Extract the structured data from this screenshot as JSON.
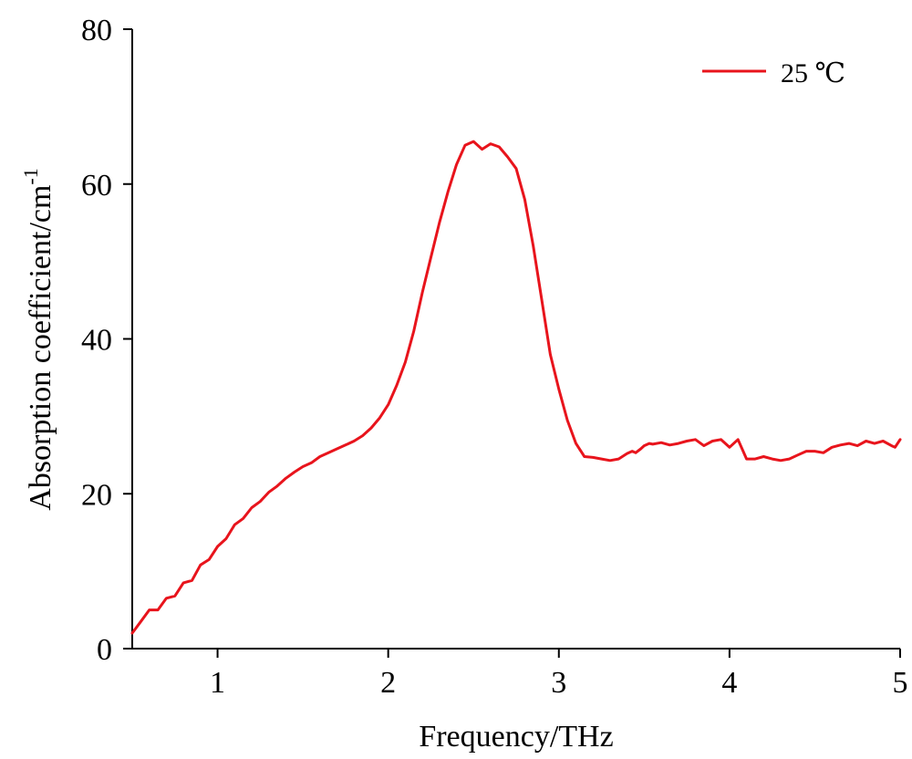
{
  "chart_data": {
    "type": "line",
    "xlabel": "Frequency/THz",
    "ylabel": "Absorption coefficient/cm",
    "ylabel_superscript": "-1",
    "xlim": [
      0.5,
      5
    ],
    "ylim": [
      0,
      80
    ],
    "xticks": [
      "1",
      "2",
      "3",
      "4",
      "5"
    ],
    "yticks": [
      "0",
      "20",
      "40",
      "60",
      "80"
    ],
    "grid": false,
    "legend_position": "top-right",
    "series": [
      {
        "name": "25 ℃",
        "color": "#e8141c",
        "x": [
          0.5,
          0.55,
          0.6,
          0.65,
          0.7,
          0.75,
          0.8,
          0.85,
          0.9,
          0.95,
          1.0,
          1.05,
          1.1,
          1.15,
          1.2,
          1.25,
          1.3,
          1.35,
          1.4,
          1.45,
          1.5,
          1.55,
          1.6,
          1.65,
          1.7,
          1.75,
          1.8,
          1.85,
          1.9,
          1.95,
          2.0,
          2.05,
          2.1,
          2.15,
          2.2,
          2.25,
          2.3,
          2.35,
          2.4,
          2.45,
          2.5,
          2.55,
          2.6,
          2.65,
          2.7,
          2.75,
          2.8,
          2.85,
          2.9,
          2.95,
          3.0,
          3.05,
          3.1,
          3.15,
          3.2,
          3.25,
          3.3,
          3.35,
          3.4,
          3.43,
          3.45,
          3.48,
          3.5,
          3.53,
          3.55,
          3.6,
          3.65,
          3.7,
          3.75,
          3.8,
          3.85,
          3.9,
          3.95,
          4.0,
          4.05,
          4.1,
          4.15,
          4.2,
          4.25,
          4.3,
          4.35,
          4.4,
          4.45,
          4.5,
          4.55,
          4.6,
          4.65,
          4.7,
          4.75,
          4.8,
          4.85,
          4.9,
          4.95,
          4.97,
          5.0
        ],
        "y": [
          2.0,
          3.5,
          5.0,
          5.0,
          6.5,
          6.8,
          8.5,
          8.8,
          10.8,
          11.5,
          13.2,
          14.2,
          16.0,
          16.8,
          18.2,
          19.0,
          20.2,
          21.0,
          22.0,
          22.8,
          23.5,
          24.0,
          24.8,
          25.3,
          25.8,
          26.3,
          26.8,
          27.5,
          28.5,
          29.8,
          31.5,
          34.0,
          37.0,
          41.0,
          46.0,
          50.5,
          55.0,
          59.0,
          62.5,
          65.0,
          65.5,
          64.5,
          65.2,
          64.8,
          63.5,
          62.0,
          58.0,
          52.0,
          45.0,
          38.0,
          33.5,
          29.5,
          26.5,
          24.8,
          24.7,
          24.5,
          24.3,
          24.5,
          25.2,
          25.5,
          25.3,
          25.8,
          26.2,
          26.5,
          26.4,
          26.6,
          26.3,
          26.5,
          26.8,
          27.0,
          26.2,
          26.8,
          27.0,
          26.0,
          27.0,
          24.5,
          24.5,
          24.8,
          24.5,
          24.3,
          24.5,
          25.0,
          25.5,
          25.5,
          25.3,
          26.0,
          26.3,
          26.5,
          26.2,
          26.8,
          26.5,
          26.8,
          26.2,
          26.0,
          27.0
        ]
      }
    ]
  }
}
